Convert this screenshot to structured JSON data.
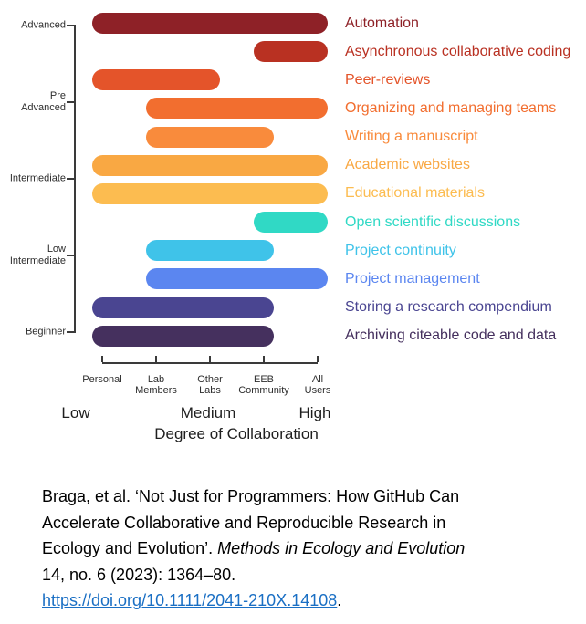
{
  "chart_data": {
    "type": "bar",
    "subtype": "horizontal-range-bars",
    "x_axis": {
      "tick_labels": [
        "Personal",
        "Lab\nMembers",
        "Other\nLabs",
        "EEB\nCommunity",
        "All\nUsers"
      ],
      "scale_labels": [
        "Low",
        "Medium",
        "High"
      ],
      "title": "Degree of Collaboration"
    },
    "y_axis": {
      "tick_labels": [
        "Advanced",
        "Pre\nAdvanced",
        "Intermediate",
        "Low\nIntermediate",
        "Beginner"
      ]
    },
    "bars": [
      {
        "label": "Automation",
        "from": "Personal",
        "to": "All Users",
        "color": "#8E2127"
      },
      {
        "label": "Asynchronous collaborative coding",
        "from": "EEB Community",
        "to": "All Users",
        "color": "#B93122"
      },
      {
        "label": "Peer-reviews",
        "from": "Personal",
        "to": "Other Labs",
        "color": "#E4542A"
      },
      {
        "label": "Organizing and managing teams",
        "from": "Lab Members",
        "to": "All Users",
        "color": "#F26E2F"
      },
      {
        "label": "Writing a manuscript",
        "from": "Lab Members",
        "to": "EEB Community",
        "color": "#F98B3C"
      },
      {
        "label": "Academic websites",
        "from": "Personal",
        "to": "All Users",
        "color": "#F9A843"
      },
      {
        "label": "Educational materials",
        "from": "Personal",
        "to": "All Users",
        "color": "#FCBC50"
      },
      {
        "label": "Open scientific discussions",
        "from": "EEB Community",
        "to": "All Users",
        "color": "#30D9C5"
      },
      {
        "label": "Project continuity",
        "from": "Lab Members",
        "to": "EEB Community",
        "color": "#3FC3E9"
      },
      {
        "label": "Project management",
        "from": "Lab Members",
        "to": "All Users",
        "color": "#5B86F0"
      },
      {
        "label": "Storing a research compendium",
        "from": "Personal",
        "to": "EEB Community",
        "color": "#4A4591"
      },
      {
        "label": "Archiving citeable code and data",
        "from": "Personal",
        "to": "EEB Community",
        "color": "#45305E"
      }
    ]
  },
  "citation": {
    "lines": [
      [
        {
          "t": "Braga, et al. ‘Not Just for Programmers: How GitHub Can"
        }
      ],
      [
        {
          "t": "Accelerate Collaborative and Reproducible Research in"
        }
      ],
      [
        {
          "t": "Ecology and Evolution’. "
        },
        {
          "t": "Methods in Ecology and Evolution",
          "italic": true
        }
      ],
      [
        {
          "t": "14, no. 6 (2023): 1364–80."
        }
      ],
      [
        {
          "t": "https://doi.org/10.1111/2041-210X.14108",
          "link": true,
          "url": "https://doi.org/10.1111/2041-210X.14108"
        },
        {
          "t": "."
        }
      ]
    ]
  }
}
